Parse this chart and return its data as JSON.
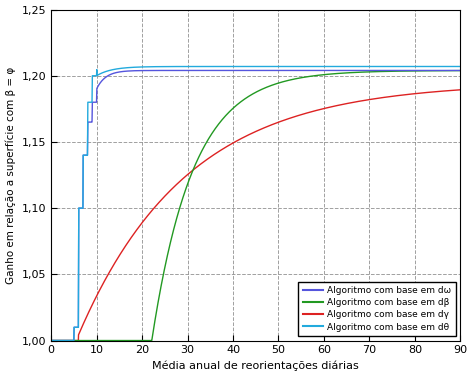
{
  "title": "",
  "xlabel": "Média anual de reorientações diárias",
  "ylabel": "Ganho em relação a superfície com β = φ",
  "xlim": [
    0,
    90
  ],
  "ylim": [
    1.0,
    1.25
  ],
  "xticks": [
    0,
    10,
    20,
    30,
    40,
    50,
    60,
    70,
    80,
    90
  ],
  "yticks": [
    1.0,
    1.05,
    1.1,
    1.15,
    1.2,
    1.25
  ],
  "legend_labels": [
    "Algoritmo com base em dω",
    "Algoritmo com base em dβ",
    "Algoritmo com base em dγ",
    "Algoritmo com base em dθ"
  ],
  "colors": [
    "#5555dd",
    "#229922",
    "#dd2222",
    "#22aadd"
  ],
  "asymptote_dw": 1.204,
  "asymptote_db": 1.204,
  "asymptote_dg": 1.195,
  "asymptote_dt": 1.207,
  "background_color": "#ffffff",
  "grid_color": "#888888",
  "dashed_line_color": "#000000"
}
